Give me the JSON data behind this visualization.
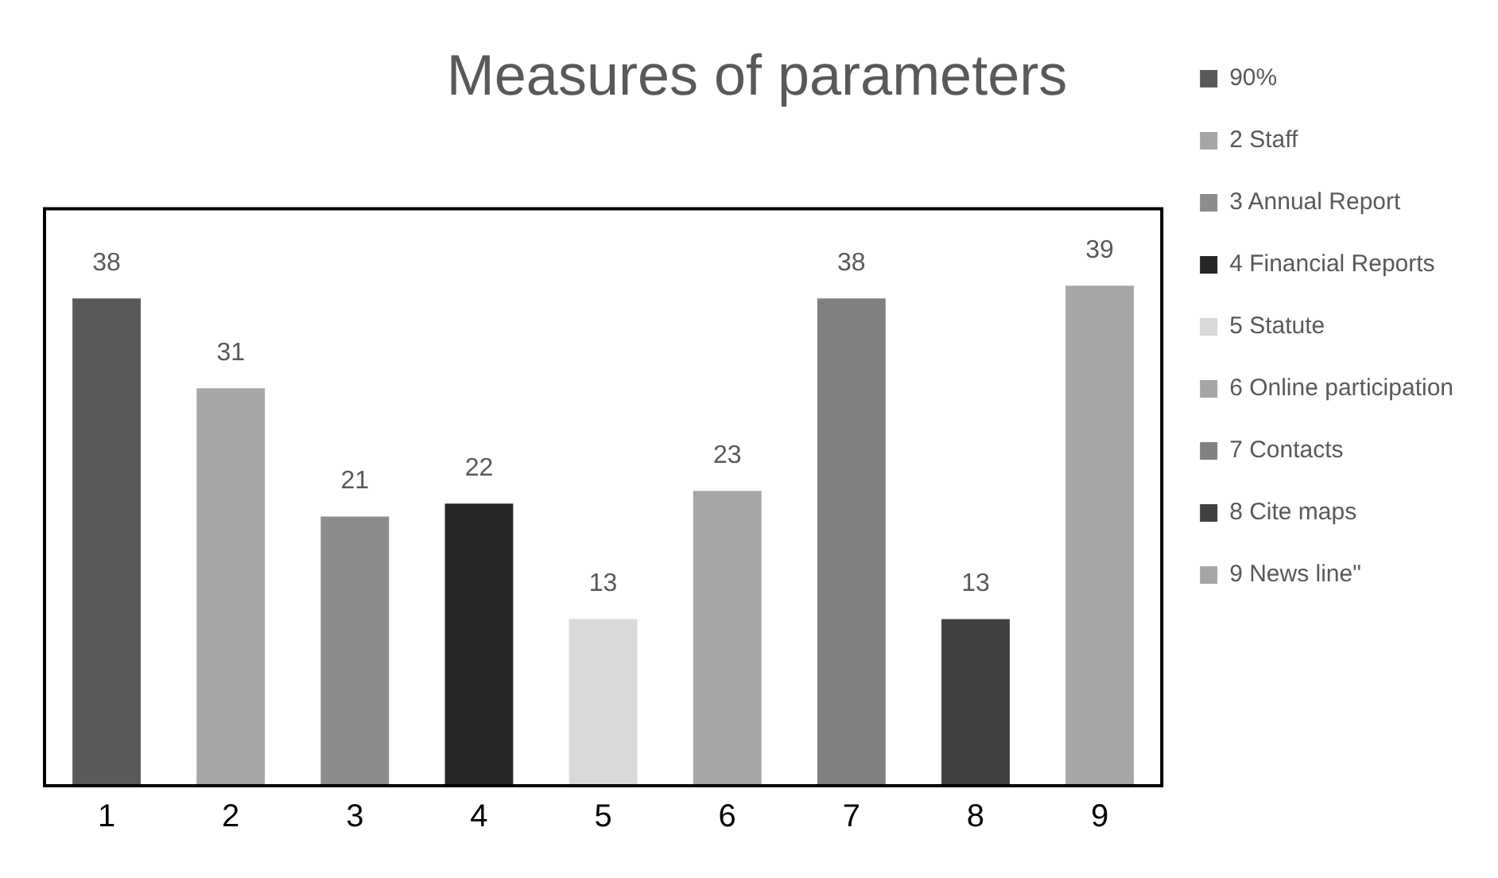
{
  "chart_data": {
    "type": "bar",
    "title": "Measures of parameters",
    "categories": [
      "1",
      "2",
      "3",
      "4",
      "5",
      "6",
      "7",
      "8",
      "9"
    ],
    "data_labels": true,
    "legend": "right",
    "grid": false,
    "series": [
      {
        "name": "90%",
        "color": "#595959",
        "values": [
          38,
          null,
          null,
          null,
          null,
          null,
          null,
          null,
          null
        ]
      },
      {
        "name": "2 Staff",
        "color": "#a6a6a6",
        "values": [
          null,
          31,
          null,
          null,
          null,
          null,
          null,
          null,
          null
        ]
      },
      {
        "name": "3 Annual Report",
        "color": "#8c8c8c",
        "values": [
          null,
          null,
          21,
          null,
          null,
          null,
          null,
          null,
          null
        ]
      },
      {
        "name": "4 Financial Reports",
        "color": "#262626",
        "values": [
          null,
          null,
          null,
          22,
          null,
          null,
          null,
          null,
          null
        ]
      },
      {
        "name": "5 Statute",
        "color": "#d9d9d9",
        "values": [
          null,
          null,
          null,
          null,
          13,
          null,
          null,
          null,
          null
        ]
      },
      {
        "name": "6 Online participation",
        "color": "#a6a6a6",
        "values": [
          null,
          null,
          null,
          null,
          null,
          23,
          null,
          null,
          null
        ]
      },
      {
        "name": "7 Contacts",
        "color": "#808080",
        "values": [
          null,
          null,
          null,
          null,
          null,
          null,
          38,
          null,
          null
        ]
      },
      {
        "name": "8 Cite maps",
        "color": "#404040",
        "values": [
          null,
          null,
          null,
          null,
          null,
          null,
          null,
          13,
          null
        ]
      },
      {
        "name": "9 News line\"",
        "color": "#a6a6a6",
        "values": [
          null,
          null,
          null,
          null,
          null,
          null,
          null,
          null,
          39
        ]
      }
    ]
  }
}
